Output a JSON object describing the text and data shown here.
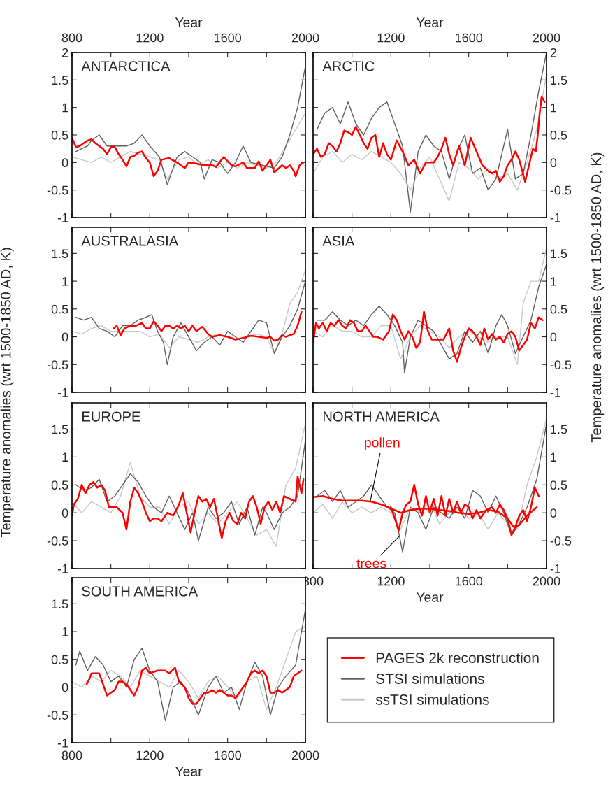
{
  "chart_data": [
    {
      "type": "line",
      "title": "ANTARCTICA",
      "xlabel": "Year",
      "xlim": [
        800,
        2000
      ],
      "xticks": [
        800,
        {
          "value": 1000,
          "label": null
        },
        1200,
        {
          "value": 1400,
          "label": null
        },
        1600,
        {
          "value": 1800,
          "label": null
        },
        2000
      ],
      "ylim": [
        -1,
        2
      ],
      "yticks": [
        -1,
        -0.5,
        0,
        0.5,
        1,
        1.5,
        2
      ],
      "grid": false,
      "series": [
        {
          "color": "#c8c8c8",
          "x": [
            800,
            850,
            900,
            950,
            1000,
            1050,
            1100,
            1150,
            1200,
            1250,
            1290,
            1350,
            1400,
            1450,
            1500,
            1550,
            1600,
            1650,
            1700,
            1750,
            1800,
            1850,
            1900,
            1950,
            2000
          ],
          "values": [
            0.1,
            0.05,
            0.0,
            0.1,
            0.0,
            0.1,
            0.2,
            0.15,
            0.1,
            0.05,
            -0.3,
            0.05,
            0.1,
            -0.05,
            0.05,
            -0.1,
            0.0,
            -0.1,
            0.0,
            -0.05,
            -0.1,
            0.0,
            0.3,
            0.6,
            0.9
          ]
        },
        {
          "color": "#606060",
          "x": [
            820,
            880,
            900,
            940,
            980,
            1040,
            1080,
            1120,
            1160,
            1200,
            1250,
            1290,
            1340,
            1380,
            1420,
            1460,
            1480,
            1520,
            1560,
            1600,
            1640,
            1680,
            1720,
            1780,
            1840,
            1880,
            1920,
            1960,
            2000
          ],
          "values": [
            0.2,
            0.3,
            0.4,
            0.5,
            0.3,
            0.3,
            0.3,
            0.35,
            0.5,
            0.3,
            0.1,
            -0.4,
            0.1,
            0.2,
            0.1,
            0.0,
            -0.3,
            0.05,
            0.0,
            -0.2,
            0.0,
            0.3,
            0.0,
            -0.05,
            -0.1,
            0.1,
            0.5,
            1.0,
            1.75
          ]
        },
        {
          "color": "#ff0000",
          "x": [
            800,
            820,
            840,
            860,
            880,
            900,
            920,
            940,
            960,
            980,
            1000,
            1020,
            1040,
            1060,
            1080,
            1100,
            1120,
            1140,
            1160,
            1180,
            1200,
            1220,
            1240,
            1260,
            1300,
            1340,
            1380,
            1400,
            1440,
            1480,
            1520,
            1540,
            1580,
            1620,
            1640,
            1680,
            1700,
            1740,
            1760,
            1780,
            1800,
            1820,
            1840,
            1880,
            1900,
            1920,
            1940,
            1950,
            1970,
            1990
          ],
          "values": [
            0.45,
            0.28,
            0.3,
            0.35,
            0.4,
            0.42,
            0.35,
            0.3,
            0.25,
            0.15,
            0.28,
            0.28,
            0.15,
            0.05,
            -0.07,
            0.1,
            0.12,
            0.18,
            0.2,
            0.08,
            0.0,
            -0.25,
            -0.15,
            0.05,
            0.08,
            0.0,
            -0.1,
            0.0,
            -0.02,
            -0.05,
            -0.05,
            -0.08,
            0.1,
            -0.05,
            -0.07,
            0.0,
            -0.1,
            -0.1,
            0.02,
            -0.15,
            -0.05,
            0.05,
            -0.18,
            -0.05,
            -0.1,
            -0.05,
            -0.15,
            -0.25,
            -0.05,
            0.0
          ]
        }
      ]
    },
    {
      "type": "line",
      "title": "ARCTIC",
      "xlabel": "Year",
      "xlim": [
        800,
        2000
      ],
      "xticks": [
        {
          "value": 800,
          "label": null
        },
        {
          "value": 1000,
          "label": null
        },
        1200,
        {
          "value": 1400,
          "label": null
        },
        1600,
        {
          "value": 1800,
          "label": null
        },
        2000
      ],
      "ylim": [
        -1,
        2
      ],
      "yticks": [
        -1,
        -0.5,
        0,
        0.5,
        1,
        1.5,
        2
      ],
      "series": [
        {
          "color": "#c8c8c8",
          "x": [
            800,
            850,
            900,
            950,
            1000,
            1050,
            1100,
            1150,
            1200,
            1250,
            1300,
            1350,
            1400,
            1450,
            1500,
            1550,
            1600,
            1650,
            1700,
            1750,
            1800,
            1850,
            1900,
            1950,
            2000
          ],
          "values": [
            -0.2,
            0.1,
            0.2,
            0.0,
            0.15,
            0.05,
            0.2,
            0.1,
            0.0,
            -0.2,
            -0.5,
            -0.1,
            0.1,
            -0.3,
            -0.7,
            0.0,
            -0.1,
            -0.3,
            -0.1,
            -0.3,
            -0.2,
            -0.5,
            0.0,
            0.6,
            1.6
          ]
        },
        {
          "color": "#606060",
          "x": [
            820,
            860,
            900,
            940,
            980,
            1020,
            1060,
            1100,
            1140,
            1180,
            1220,
            1260,
            1300,
            1340,
            1380,
            1420,
            1460,
            1500,
            1540,
            1580,
            1620,
            1660,
            1700,
            1740,
            1780,
            1800,
            1840,
            1880,
            1920,
            1960,
            2000
          ],
          "values": [
            0.6,
            0.9,
            1.0,
            0.7,
            1.1,
            0.7,
            0.5,
            0.8,
            1.0,
            1.1,
            0.7,
            0.3,
            -0.9,
            0.2,
            0.5,
            0.3,
            0.2,
            -0.3,
            0.2,
            0.5,
            -0.2,
            -0.1,
            -0.5,
            -0.3,
            0.3,
            0.6,
            -0.3,
            -0.2,
            0.5,
            1.3,
            2.0
          ]
        },
        {
          "color": "#ff0000",
          "x": [
            800,
            820,
            840,
            860,
            880,
            900,
            920,
            940,
            960,
            980,
            1000,
            1020,
            1040,
            1060,
            1080,
            1100,
            1120,
            1140,
            1160,
            1180,
            1200,
            1230,
            1260,
            1290,
            1320,
            1350,
            1380,
            1420,
            1440,
            1460,
            1480,
            1500,
            1520,
            1550,
            1580,
            1610,
            1640,
            1670,
            1700,
            1720,
            1740,
            1760,
            1780,
            1800,
            1820,
            1840,
            1860,
            1890,
            1910,
            1930,
            1945,
            1955,
            1965,
            1975,
            1990
          ],
          "values": [
            0.15,
            0.25,
            0.1,
            0.15,
            0.35,
            0.3,
            0.2,
            0.35,
            0.58,
            0.55,
            0.5,
            0.65,
            0.5,
            0.35,
            0.25,
            0.45,
            0.5,
            0.1,
            0.35,
            0.15,
            0.05,
            0.4,
            0.2,
            -0.05,
            0.05,
            -0.2,
            0.0,
            0.0,
            0.1,
            0.25,
            0.45,
            0.15,
            -0.05,
            0.3,
            -0.05,
            0.45,
            0.2,
            -0.05,
            -0.15,
            -0.2,
            -0.15,
            -0.35,
            -0.25,
            -0.05,
            0.05,
            0.2,
            0.05,
            -0.35,
            -0.05,
            0.25,
            0.2,
            0.5,
            0.9,
            1.2,
            1.1
          ]
        }
      ]
    },
    {
      "type": "line",
      "title": "AUSTRALASIA",
      "ylabel": "Temperature anomalies (wrt 1500-1850 AD, K)",
      "xlim": [
        800,
        2000
      ],
      "xticks": [
        800,
        {
          "value": 1000,
          "label": null
        },
        1200,
        {
          "value": 1400,
          "label": null
        },
        1600,
        {
          "value": 1800,
          "label": null
        },
        2000
      ],
      "tick_labels": "y",
      "ylim": [
        -1,
        1.97
      ],
      "yticks": [
        -1,
        -0.5,
        0,
        0.5,
        1,
        1.5
      ],
      "series": [
        {
          "color": "#c8c8c8",
          "x": [
            800,
            850,
            900,
            950,
            1000,
            1050,
            1100,
            1150,
            1200,
            1250,
            1300,
            1350,
            1400,
            1450,
            1500,
            1550,
            1600,
            1650,
            1700,
            1750,
            1800,
            1840,
            1880,
            1920,
            1960,
            2000
          ],
          "values": [
            0.1,
            0.05,
            0.15,
            0.2,
            0.1,
            0.1,
            0.1,
            0.1,
            0.0,
            0.05,
            -0.2,
            0.0,
            -0.05,
            -0.1,
            0.0,
            0.05,
            0.0,
            -0.05,
            0.0,
            0.05,
            0.0,
            -0.3,
            0.05,
            0.6,
            0.8,
            1.2
          ]
        },
        {
          "color": "#606060",
          "x": [
            820,
            860,
            900,
            940,
            980,
            1020,
            1060,
            1100,
            1140,
            1180,
            1210,
            1240,
            1270,
            1290,
            1320,
            1360,
            1400,
            1440,
            1480,
            1520,
            1560,
            1600,
            1640,
            1680,
            1720,
            1760,
            1800,
            1840,
            1880,
            1920,
            1960,
            2000
          ],
          "values": [
            0.35,
            0.3,
            0.35,
            0.15,
            0.1,
            0.0,
            0.2,
            0.2,
            0.3,
            0.35,
            0.4,
            0.1,
            -0.1,
            -0.5,
            0.0,
            0.25,
            0.0,
            -0.25,
            -0.1,
            0.0,
            -0.15,
            0.1,
            0.0,
            -0.1,
            0.1,
            0.3,
            0.25,
            -0.3,
            0.0,
            0.2,
            0.5,
            1.0
          ]
        },
        {
          "color": "#ff0000",
          "x": [
            1015,
            1030,
            1050,
            1070,
            1100,
            1130,
            1160,
            1180,
            1200,
            1220,
            1240,
            1260,
            1280,
            1300,
            1320,
            1340,
            1360,
            1380,
            1400,
            1420,
            1440,
            1470,
            1500,
            1520,
            1560,
            1600,
            1640,
            1680,
            1720,
            1760,
            1800,
            1820,
            1840,
            1860,
            1880,
            1900,
            1920,
            1940,
            1960,
            1980
          ],
          "values": [
            0.15,
            0.2,
            0.03,
            0.15,
            0.2,
            0.2,
            0.25,
            0.15,
            0.15,
            0.28,
            0.2,
            0.1,
            0.2,
            0.2,
            0.15,
            0.2,
            0.15,
            0.2,
            0.1,
            0.2,
            0.1,
            0.18,
            0.05,
            0.0,
            0.03,
            0.0,
            -0.05,
            -0.02,
            0.02,
            0.0,
            -0.02,
            0.0,
            -0.07,
            -0.05,
            0.03,
            0.0,
            0.03,
            0.05,
            0.2,
            0.45
          ]
        }
      ]
    },
    {
      "type": "line",
      "title": "ASIA",
      "ylabel": "Temperature anomalies (wrt 1500-1850 AD, K)",
      "xlim": [
        800,
        2000
      ],
      "xticks": [
        800,
        {
          "value": 1000,
          "label": null
        },
        1200,
        {
          "value": 1400,
          "label": null
        },
        1600,
        {
          "value": 1800,
          "label": null
        },
        2000
      ],
      "tick_labels": "y",
      "ylim": [
        -1,
        1.97
      ],
      "yticks": [
        -1,
        -0.5,
        0,
        0.5,
        1,
        1.5
      ],
      "series": [
        {
          "color": "#c8c8c8",
          "x": [
            800,
            850,
            900,
            950,
            1000,
            1050,
            1100,
            1150,
            1200,
            1250,
            1300,
            1350,
            1400,
            1450,
            1500,
            1550,
            1600,
            1650,
            1700,
            1750,
            1800,
            1850,
            1880,
            1920,
            1960,
            2000
          ],
          "values": [
            0.1,
            0.0,
            0.2,
            0.1,
            0.1,
            0.0,
            0.0,
            0.2,
            0.2,
            -0.4,
            0.0,
            0.2,
            0.1,
            0.0,
            -0.2,
            0.0,
            0.1,
            0.0,
            -0.1,
            0.0,
            0.0,
            -0.5,
            0.6,
            1.0,
            1.0,
            1.6
          ]
        },
        {
          "color": "#606060",
          "x": [
            820,
            860,
            900,
            940,
            980,
            1020,
            1060,
            1100,
            1140,
            1180,
            1220,
            1260,
            1270,
            1300,
            1340,
            1380,
            1420,
            1460,
            1500,
            1540,
            1580,
            1620,
            1660,
            1700,
            1740,
            1770,
            1800,
            1840,
            1880,
            1920,
            1960,
            2000
          ],
          "values": [
            0.3,
            0.3,
            0.45,
            0.3,
            0.2,
            0.3,
            0.2,
            0.4,
            0.55,
            0.4,
            0.2,
            -0.1,
            -0.65,
            0.0,
            0.3,
            0.2,
            0.1,
            -0.15,
            -0.4,
            -0.3,
            0.1,
            -0.1,
            0.1,
            -0.3,
            0.2,
            0.4,
            0.2,
            -0.3,
            0.0,
            0.3,
            0.9,
            1.3
          ]
        },
        {
          "color": "#ff0000",
          "x": [
            800,
            815,
            830,
            850,
            870,
            890,
            910,
            930,
            950,
            970,
            990,
            1010,
            1030,
            1050,
            1070,
            1090,
            1110,
            1130,
            1160,
            1190,
            1210,
            1230,
            1250,
            1270,
            1290,
            1310,
            1330,
            1350,
            1370,
            1390,
            1410,
            1440,
            1470,
            1500,
            1520,
            1540,
            1560,
            1580,
            1600,
            1620,
            1640,
            1660,
            1680,
            1700,
            1720,
            1740,
            1760,
            1780,
            1800,
            1820,
            1840,
            1860,
            1880,
            1900,
            1920,
            1940,
            1960,
            1980
          ],
          "values": [
            -0.1,
            0.25,
            0.15,
            0.25,
            0.1,
            0.25,
            0.2,
            0.3,
            0.2,
            0.15,
            0.3,
            0.25,
            0.1,
            0.1,
            0.2,
            0.1,
            0.0,
            0.0,
            -0.05,
            0.1,
            0.4,
            0.3,
            0.1,
            -0.05,
            0.1,
            0.0,
            -0.2,
            -0.1,
            0.45,
            0.1,
            -0.05,
            -0.05,
            -0.05,
            0.15,
            -0.25,
            -0.45,
            -0.2,
            0.0,
            0.15,
            0.1,
            0.0,
            -0.15,
            0.15,
            -0.05,
            0.05,
            -0.05,
            0.0,
            -0.1,
            0.05,
            0.1,
            0.0,
            -0.25,
            -0.15,
            -0.05,
            0.25,
            0.15,
            0.35,
            0.3
          ]
        }
      ]
    },
    {
      "type": "line",
      "title": "EUROPE",
      "xlim": [
        800,
        2000
      ],
      "xticks": [
        800,
        {
          "value": 1000,
          "label": null
        },
        1200,
        {
          "value": 1400,
          "label": null
        },
        1600,
        {
          "value": 1800,
          "label": null
        },
        2000
      ],
      "tick_labels": "y",
      "ylim": [
        -1,
        1.97
      ],
      "yticks": [
        -1,
        -0.5,
        0,
        0.5,
        1,
        1.5
      ],
      "series": [
        {
          "color": "#c8c8c8",
          "x": [
            800,
            850,
            900,
            950,
            1000,
            1050,
            1100,
            1150,
            1200,
            1250,
            1300,
            1350,
            1400,
            1450,
            1500,
            1550,
            1600,
            1650,
            1700,
            1750,
            1800,
            1850,
            1900,
            1950,
            2000
          ],
          "values": [
            0.2,
            0.0,
            0.2,
            0.1,
            0.0,
            0.3,
            0.9,
            0.3,
            0.1,
            0.1,
            -0.2,
            0.1,
            0.2,
            -0.2,
            0.0,
            -0.2,
            0.0,
            0.2,
            -0.1,
            -0.4,
            -0.3,
            -0.6,
            0.5,
            0.8,
            1.6
          ]
        },
        {
          "color": "#606060",
          "x": [
            820,
            860,
            900,
            940,
            980,
            1020,
            1060,
            1100,
            1140,
            1180,
            1220,
            1260,
            1300,
            1340,
            1380,
            1420,
            1450,
            1500,
            1540,
            1580,
            1620,
            1660,
            1700,
            1740,
            1780,
            1800,
            1840,
            1880,
            1920,
            1960,
            2000
          ],
          "values": [
            0.5,
            0.4,
            0.45,
            0.6,
            0.2,
            0.3,
            0.5,
            0.7,
            0.55,
            0.3,
            0.1,
            0.0,
            0.3,
            0.0,
            -0.3,
            0.0,
            -0.5,
            0.1,
            -0.1,
            0.0,
            0.2,
            -0.2,
            0.1,
            -0.4,
            0.1,
            0.0,
            -0.3,
            0.0,
            0.1,
            0.3,
            1.3
          ]
        },
        {
          "color": "#ff0000",
          "x": [
            800,
            810,
            830,
            850,
            870,
            890,
            910,
            930,
            950,
            970,
            990,
            1010,
            1030,
            1060,
            1080,
            1100,
            1120,
            1140,
            1160,
            1180,
            1200,
            1220,
            1240,
            1260,
            1290,
            1320,
            1350,
            1370,
            1390,
            1410,
            1430,
            1450,
            1470,
            1490,
            1510,
            1530,
            1550,
            1570,
            1590,
            1610,
            1630,
            1650,
            1670,
            1690,
            1710,
            1730,
            1750,
            1770,
            1790,
            1810,
            1830,
            1850,
            1870,
            1890,
            1920,
            1950,
            1960,
            1980,
            1990
          ],
          "values": [
            -0.05,
            0.15,
            0.25,
            0.5,
            0.35,
            0.5,
            0.55,
            0.45,
            0.5,
            0.4,
            0.1,
            0.1,
            0.1,
            0.0,
            -0.3,
            0.2,
            0.45,
            0.35,
            0.2,
            0.0,
            -0.15,
            -0.1,
            -0.1,
            -0.15,
            0.0,
            -0.05,
            0.15,
            0.35,
            0.0,
            -0.35,
            0.0,
            0.3,
            0.2,
            0.25,
            0.1,
            0.25,
            -0.1,
            -0.45,
            -0.15,
            0.0,
            -0.15,
            -0.2,
            0.0,
            -0.1,
            0.2,
            0.3,
            0.1,
            -0.2,
            0.1,
            0.2,
            0.05,
            0.2,
            0.0,
            0.3,
            0.25,
            0.2,
            0.65,
            0.35,
            0.6
          ]
        }
      ]
    },
    {
      "type": "line",
      "title": "NORTH AMERICA",
      "xlabel": "Year",
      "xlim": [
        800,
        2000
      ],
      "xticks": [
        800,
        {
          "value": 1000,
          "label": null
        },
        1200,
        {
          "value": 1400,
          "label": null
        },
        1600,
        {
          "value": 1800,
          "label": null
        },
        2000
      ],
      "ylim": [
        -1,
        1.97
      ],
      "yticks": [
        -1,
        -0.5,
        0,
        0.5,
        1,
        1.5
      ],
      "annotations": [
        {
          "text": "pollen",
          "x": 1095,
          "y": 0.22
        },
        {
          "text": "trees",
          "x": 1240,
          "y": -0.43
        }
      ],
      "series": [
        {
          "color": "#c8c8c8",
          "x": [
            800,
            850,
            900,
            950,
            1000,
            1050,
            1100,
            1150,
            1200,
            1250,
            1300,
            1350,
            1400,
            1450,
            1500,
            1550,
            1600,
            1650,
            1700,
            1750,
            1800,
            1850,
            1900,
            1950,
            2000
          ],
          "values": [
            0.0,
            0.15,
            -0.1,
            0.2,
            0.0,
            0.1,
            0.0,
            0.1,
            0.0,
            -0.3,
            0.1,
            0.0,
            0.2,
            -0.2,
            0.0,
            0.1,
            -0.1,
            0.0,
            -0.3,
            0.0,
            -0.2,
            -0.3,
            0.5,
            1.0,
            1.7
          ]
        },
        {
          "color": "#606060",
          "x": [
            820,
            860,
            900,
            940,
            980,
            1020,
            1060,
            1100,
            1140,
            1180,
            1220,
            1260,
            1300,
            1340,
            1380,
            1420,
            1460,
            1500,
            1540,
            1580,
            1620,
            1660,
            1700,
            1740,
            1780,
            1820,
            1860,
            1900,
            1950,
            2000
          ],
          "values": [
            0.3,
            0.4,
            0.2,
            0.4,
            0.1,
            0.2,
            0.3,
            0.5,
            0.3,
            0.1,
            0.0,
            -0.7,
            0.1,
            0.0,
            -0.3,
            0.1,
            0.0,
            -0.1,
            0.1,
            -0.1,
            0.4,
            0.3,
            0.0,
            0.3,
            0.0,
            -0.4,
            -0.2,
            0.1,
            0.6,
            1.6
          ]
        },
        {
          "color": "#ff0000",
          "x": [
            800,
            850,
            900,
            950,
            1000,
            1050,
            1100,
            1150,
            1200,
            1250,
            1300,
            1350,
            1400,
            1450,
            1500,
            1550,
            1600,
            1650,
            1700,
            1750,
            1800,
            1830,
            1860,
            1900,
            1950
          ],
          "values": [
            0.28,
            0.3,
            0.25,
            0.22,
            0.22,
            0.22,
            0.2,
            0.15,
            0.08,
            0.0,
            0.05,
            0.07,
            0.07,
            0.05,
            0.03,
            0.0,
            -0.02,
            0.0,
            0.05,
            0.02,
            -0.1,
            -0.25,
            -0.22,
            -0.05,
            0.1
          ]
        },
        {
          "color": "#ff0000",
          "x": [
            1200,
            1220,
            1240,
            1260,
            1280,
            1300,
            1320,
            1340,
            1360,
            1380,
            1400,
            1420,
            1440,
            1460,
            1480,
            1500,
            1520,
            1540,
            1560,
            1580,
            1600,
            1620,
            1640,
            1660,
            1690,
            1720,
            1740,
            1760,
            1780,
            1800,
            1820,
            1840,
            1860,
            1880,
            1900,
            1920,
            1940,
            1960
          ],
          "values": [
            0.1,
            -0.1,
            -0.32,
            0.0,
            0.15,
            0.2,
            0.5,
            0.15,
            -0.05,
            0.3,
            0.0,
            0.25,
            -0.05,
            0.3,
            -0.05,
            0.25,
            0.0,
            0.2,
            0.0,
            0.15,
            0.1,
            -0.1,
            0.05,
            -0.1,
            0.05,
            0.1,
            0.0,
            0.15,
            0.05,
            -0.1,
            -0.4,
            -0.25,
            -0.05,
            0.05,
            -0.15,
            0.1,
            0.45,
            0.3
          ]
        }
      ]
    },
    {
      "type": "line",
      "title": "SOUTH AMERICA",
      "xlabel": "Year",
      "xlim": [
        800,
        2000
      ],
      "xticks": [
        800,
        {
          "value": 1000,
          "label": null
        },
        1200,
        {
          "value": 1400,
          "label": null
        },
        1600,
        {
          "value": 1800,
          "label": null
        },
        2000
      ],
      "ylim": [
        -1,
        1.97
      ],
      "yticks": [
        -1,
        -0.5,
        0,
        0.5,
        1,
        1.5
      ],
      "legend": "right",
      "series": [
        {
          "name": "ssTSI simulations",
          "color": "#c8c8c8",
          "x": [
            800,
            850,
            900,
            950,
            1000,
            1050,
            1100,
            1150,
            1200,
            1250,
            1300,
            1350,
            1400,
            1450,
            1500,
            1550,
            1600,
            1650,
            1700,
            1750,
            1800,
            1850,
            1900,
            1950,
            2000
          ],
          "values": [
            0.1,
            0.0,
            0.2,
            0.1,
            0.3,
            0.2,
            0.0,
            0.3,
            0.2,
            0.1,
            0.0,
            0.3,
            0.1,
            -0.2,
            0.1,
            0.2,
            0.0,
            -0.2,
            0.1,
            0.2,
            -0.4,
            0.0,
            0.5,
            1.0,
            1.1
          ]
        },
        {
          "name": "STSI simulations",
          "color": "#606060",
          "x": [
            820,
            840,
            880,
            920,
            960,
            1000,
            1040,
            1080,
            1120,
            1160,
            1200,
            1240,
            1280,
            1320,
            1360,
            1400,
            1450,
            1500,
            1540,
            1580,
            1620,
            1660,
            1700,
            1740,
            1780,
            1820,
            1860,
            1900,
            1950,
            2000
          ],
          "values": [
            0.4,
            0.65,
            0.3,
            0.55,
            0.4,
            0.1,
            0.2,
            0.0,
            0.5,
            0.7,
            0.3,
            0.1,
            -0.6,
            0.0,
            0.1,
            -0.1,
            -0.5,
            0.0,
            0.2,
            -0.1,
            0.0,
            -0.4,
            0.1,
            0.45,
            0.2,
            -0.5,
            0.0,
            0.2,
            0.4,
            1.4
          ]
        },
        {
          "name": "PAGES 2k reconstruction",
          "color": "#ff0000",
          "x": [
            875,
            890,
            900,
            920,
            940,
            960,
            980,
            1000,
            1020,
            1040,
            1060,
            1080,
            1100,
            1120,
            1140,
            1160,
            1180,
            1200,
            1240,
            1280,
            1300,
            1330,
            1350,
            1380,
            1400,
            1420,
            1440,
            1460,
            1480,
            1500,
            1520,
            1540,
            1560,
            1580,
            1600,
            1620,
            1640,
            1660,
            1680,
            1700,
            1720,
            1740,
            1760,
            1780,
            1800,
            1820,
            1840,
            1860,
            1880,
            1900,
            1920,
            1940,
            1960,
            1980
          ],
          "values": [
            0.05,
            0.15,
            0.25,
            0.25,
            0.25,
            0.05,
            -0.15,
            -0.1,
            -0.05,
            0.1,
            0.1,
            0.05,
            -0.05,
            -0.15,
            0.0,
            0.3,
            0.35,
            0.25,
            0.3,
            0.3,
            0.25,
            0.35,
            0.1,
            0.0,
            -0.2,
            -0.3,
            -0.3,
            -0.2,
            -0.1,
            -0.1,
            -0.05,
            -0.1,
            -0.05,
            -0.1,
            -0.15,
            -0.15,
            -0.2,
            -0.1,
            0.0,
            0.1,
            0.25,
            0.3,
            0.25,
            0.3,
            0.2,
            -0.1,
            -0.1,
            -0.05,
            -0.1,
            -0.05,
            0.0,
            0.2,
            0.25,
            0.3
          ]
        }
      ]
    }
  ]
}
